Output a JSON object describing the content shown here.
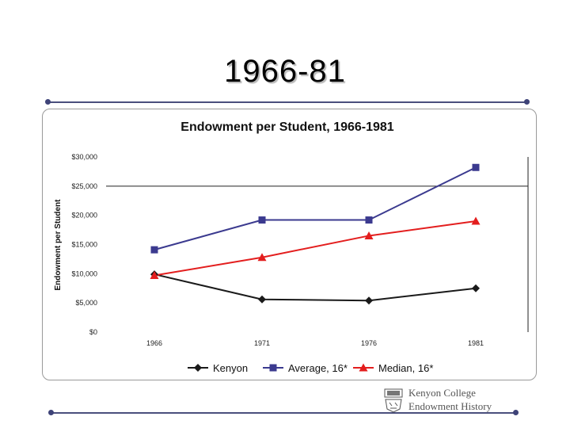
{
  "slide": {
    "title": "1966-81",
    "footer_line1": "Kenyon College",
    "footer_line2": "Endowment History"
  },
  "colors": {
    "kenyon": "#1a1a1a",
    "average": "#3b3a8f",
    "median": "#e31e1e",
    "rule": "#4a4f7d"
  },
  "chart_data": {
    "type": "line",
    "title": "Endowment per Student, 1966-1981",
    "xlabel": "",
    "ylabel": "Endowment per Student",
    "categories": [
      "1966",
      "1971",
      "1976",
      "1981"
    ],
    "ylim": [
      0,
      30000
    ],
    "y_ticks": [
      0,
      5000,
      10000,
      15000,
      20000,
      25000,
      30000
    ],
    "y_tick_labels": [
      "$0",
      "$5,000",
      "$10,000",
      "$15,000",
      "$20,000",
      "$25,000",
      "$30,000"
    ],
    "grid": "horizontal line at $25,000",
    "legend_position": "bottom",
    "series": [
      {
        "name": "Kenyon",
        "color": "#1a1a1a",
        "marker": "diamond",
        "values": [
          9900,
          5600,
          5400,
          7500
        ]
      },
      {
        "name": "Average, 16*",
        "color": "#3b3a8f",
        "marker": "square",
        "values": [
          14100,
          19200,
          19200,
          28200
        ]
      },
      {
        "name": "Median, 16*",
        "color": "#e31e1e",
        "marker": "triangle",
        "values": [
          9700,
          12800,
          16500,
          19000
        ]
      }
    ]
  }
}
